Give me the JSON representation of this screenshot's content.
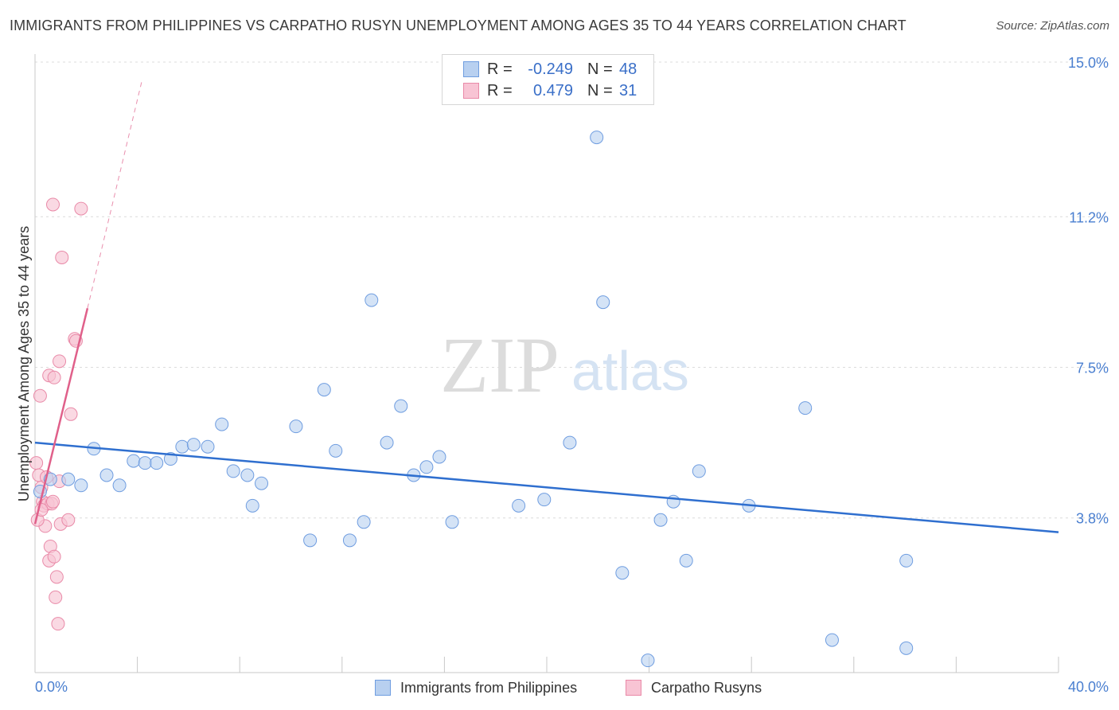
{
  "header": {
    "title": "IMMIGRANTS FROM PHILIPPINES VS CARPATHO RUSYN UNEMPLOYMENT AMONG AGES 35 TO 44 YEARS CORRELATION CHART",
    "source": "Source: ZipAtlas.com"
  },
  "legend": {
    "rows": [
      {
        "r_label": "R =",
        "r_value": "-0.249",
        "n_label": "N =",
        "n_value": "48"
      },
      {
        "r_label": "R =",
        "r_value": "0.479",
        "n_label": "N =",
        "n_value": "31"
      }
    ]
  },
  "bottom_legend": {
    "philippines": "Immigrants from Philippines",
    "rusyns": "Carpatho Rusyns"
  },
  "watermark": {
    "zip": "ZIP",
    "atlas": "atlas"
  },
  "colors": {
    "philippines_fill": "#b8d0f0",
    "philippines_stroke": "#6f9de0",
    "philippines_line": "#2f6fcf",
    "rusyns_fill": "#f8c4d4",
    "rusyns_stroke": "#e98aa8",
    "rusyns_line": "#e0608a",
    "tick_label": "#4a7fd0",
    "grid": "#dcdcdc"
  },
  "chart_data": {
    "type": "scatter",
    "title": "IMMIGRANTS FROM PHILIPPINES VS CARPATHO RUSYN UNEMPLOYMENT AMONG AGES 35 TO 44 YEARS CORRELATION CHART",
    "xlabel": "",
    "ylabel": "Unemployment Among Ages 35 to 44 years",
    "xlim": [
      0,
      40
    ],
    "ylim": [
      0,
      15.0
    ],
    "x_tick_labels": [
      "0.0%",
      "40.0%"
    ],
    "y_ticks": [
      3.8,
      7.5,
      11.2,
      15.0
    ],
    "y_tick_labels": [
      "3.8%",
      "7.5%",
      "11.2%",
      "15.0%"
    ],
    "grid": true,
    "legend_placement": "top-center",
    "series": [
      {
        "name": "Immigrants from Philippines",
        "r": -0.249,
        "n": 48,
        "trend": {
          "x0": 0.0,
          "y0": 5.65,
          "x1": 40.0,
          "y1": 3.45,
          "dashed_extension": false
        },
        "points": [
          [
            0.2,
            4.45
          ],
          [
            0.6,
            4.75
          ],
          [
            1.3,
            4.75
          ],
          [
            1.8,
            4.6
          ],
          [
            2.3,
            5.5
          ],
          [
            2.8,
            4.85
          ],
          [
            3.3,
            4.6
          ],
          [
            3.85,
            5.2
          ],
          [
            4.3,
            5.15
          ],
          [
            4.75,
            5.15
          ],
          [
            5.3,
            5.25
          ],
          [
            5.75,
            5.55
          ],
          [
            6.2,
            5.6
          ],
          [
            6.75,
            5.55
          ],
          [
            7.3,
            6.1
          ],
          [
            7.75,
            4.95
          ],
          [
            8.3,
            4.85
          ],
          [
            8.85,
            4.65
          ],
          [
            8.5,
            4.1
          ],
          [
            10.2,
            6.05
          ],
          [
            10.75,
            3.25
          ],
          [
            11.3,
            6.95
          ],
          [
            11.75,
            5.45
          ],
          [
            12.3,
            3.25
          ],
          [
            12.85,
            3.7
          ],
          [
            13.15,
            9.15
          ],
          [
            13.75,
            5.65
          ],
          [
            14.3,
            6.55
          ],
          [
            14.8,
            4.85
          ],
          [
            15.3,
            5.05
          ],
          [
            15.8,
            5.3
          ],
          [
            16.3,
            3.7
          ],
          [
            18.9,
            4.1
          ],
          [
            19.9,
            4.25
          ],
          [
            20.9,
            5.65
          ],
          [
            21.95,
            13.15
          ],
          [
            22.2,
            9.1
          ],
          [
            22.95,
            2.45
          ],
          [
            23.95,
            0.3
          ],
          [
            24.45,
            3.75
          ],
          [
            24.95,
            4.2
          ],
          [
            25.45,
            2.75
          ],
          [
            25.95,
            4.95
          ],
          [
            27.9,
            4.1
          ],
          [
            30.1,
            6.5
          ],
          [
            31.15,
            0.8
          ],
          [
            34.05,
            2.75
          ],
          [
            34.05,
            0.6
          ]
        ]
      },
      {
        "name": "Carpatho Rusyns",
        "r": 0.479,
        "n": 31,
        "trend": {
          "x0": 0.0,
          "y0": 3.65,
          "x1": 2.05,
          "y1": 8.95,
          "dashed_to": {
            "x": 4.2,
            "y": 14.6
          }
        },
        "points": [
          [
            0.05,
            5.15
          ],
          [
            0.15,
            4.85
          ],
          [
            0.2,
            6.8
          ],
          [
            0.25,
            4.55
          ],
          [
            0.3,
            4.2
          ],
          [
            0.35,
            4.1
          ],
          [
            0.4,
            3.6
          ],
          [
            0.45,
            4.8
          ],
          [
            0.5,
            4.15
          ],
          [
            0.55,
            2.75
          ],
          [
            0.6,
            3.1
          ],
          [
            0.65,
            4.15
          ],
          [
            0.7,
            4.2
          ],
          [
            0.75,
            2.85
          ],
          [
            0.8,
            1.85
          ],
          [
            0.85,
            2.35
          ],
          [
            0.9,
            1.2
          ],
          [
            0.95,
            4.7
          ],
          [
            0.55,
            7.3
          ],
          [
            0.75,
            7.25
          ],
          [
            0.7,
            11.5
          ],
          [
            0.95,
            7.65
          ],
          [
            1.0,
            3.65
          ],
          [
            1.05,
            10.2
          ],
          [
            1.3,
            3.75
          ],
          [
            1.4,
            6.35
          ],
          [
            1.55,
            8.2
          ],
          [
            1.6,
            8.15
          ],
          [
            1.8,
            11.4
          ],
          [
            0.1,
            3.75
          ],
          [
            0.25,
            4.0
          ]
        ]
      }
    ]
  }
}
